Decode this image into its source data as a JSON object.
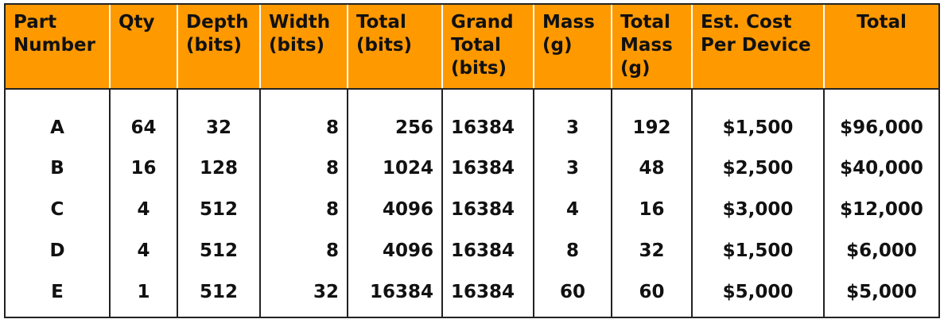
{
  "headers": [
    [
      "Part",
      "Number"
    ],
    [
      "Qty"
    ],
    [
      "Depth",
      "(bits)"
    ],
    [
      "Width",
      "(bits)"
    ],
    [
      "Total",
      "(bits)"
    ],
    [
      "Grand",
      "Total",
      "(bits)"
    ],
    [
      "Mass",
      "(g)"
    ],
    [
      "Total",
      "Mass",
      "(g)"
    ],
    [
      "Est. Cost",
      "Per Device"
    ],
    [
      "Total"
    ]
  ],
  "rows": [
    [
      "A",
      "64",
      "32",
      "8",
      "256",
      "16384",
      "3",
      "192",
      "$1,500",
      "$96,000"
    ],
    [
      "B",
      "16",
      "128",
      "8",
      "1024",
      "16384",
      "3",
      "48",
      "$2,500",
      "$40,000"
    ],
    [
      "C",
      "4",
      "512",
      "8",
      "4096",
      "16384",
      "4",
      "16",
      "$3,000",
      "$12,000"
    ],
    [
      "D",
      "4",
      "512",
      "8",
      "4096",
      "16384",
      "8",
      "32",
      "$1,500",
      "$6,000"
    ],
    [
      "E",
      "1",
      "512",
      "32",
      "16384",
      "16384",
      "60",
      "60",
      "$5,000",
      "$5,000"
    ]
  ],
  "colors": {
    "header_bg": "#FF9900",
    "text": "#111111",
    "border": "#222222"
  }
}
